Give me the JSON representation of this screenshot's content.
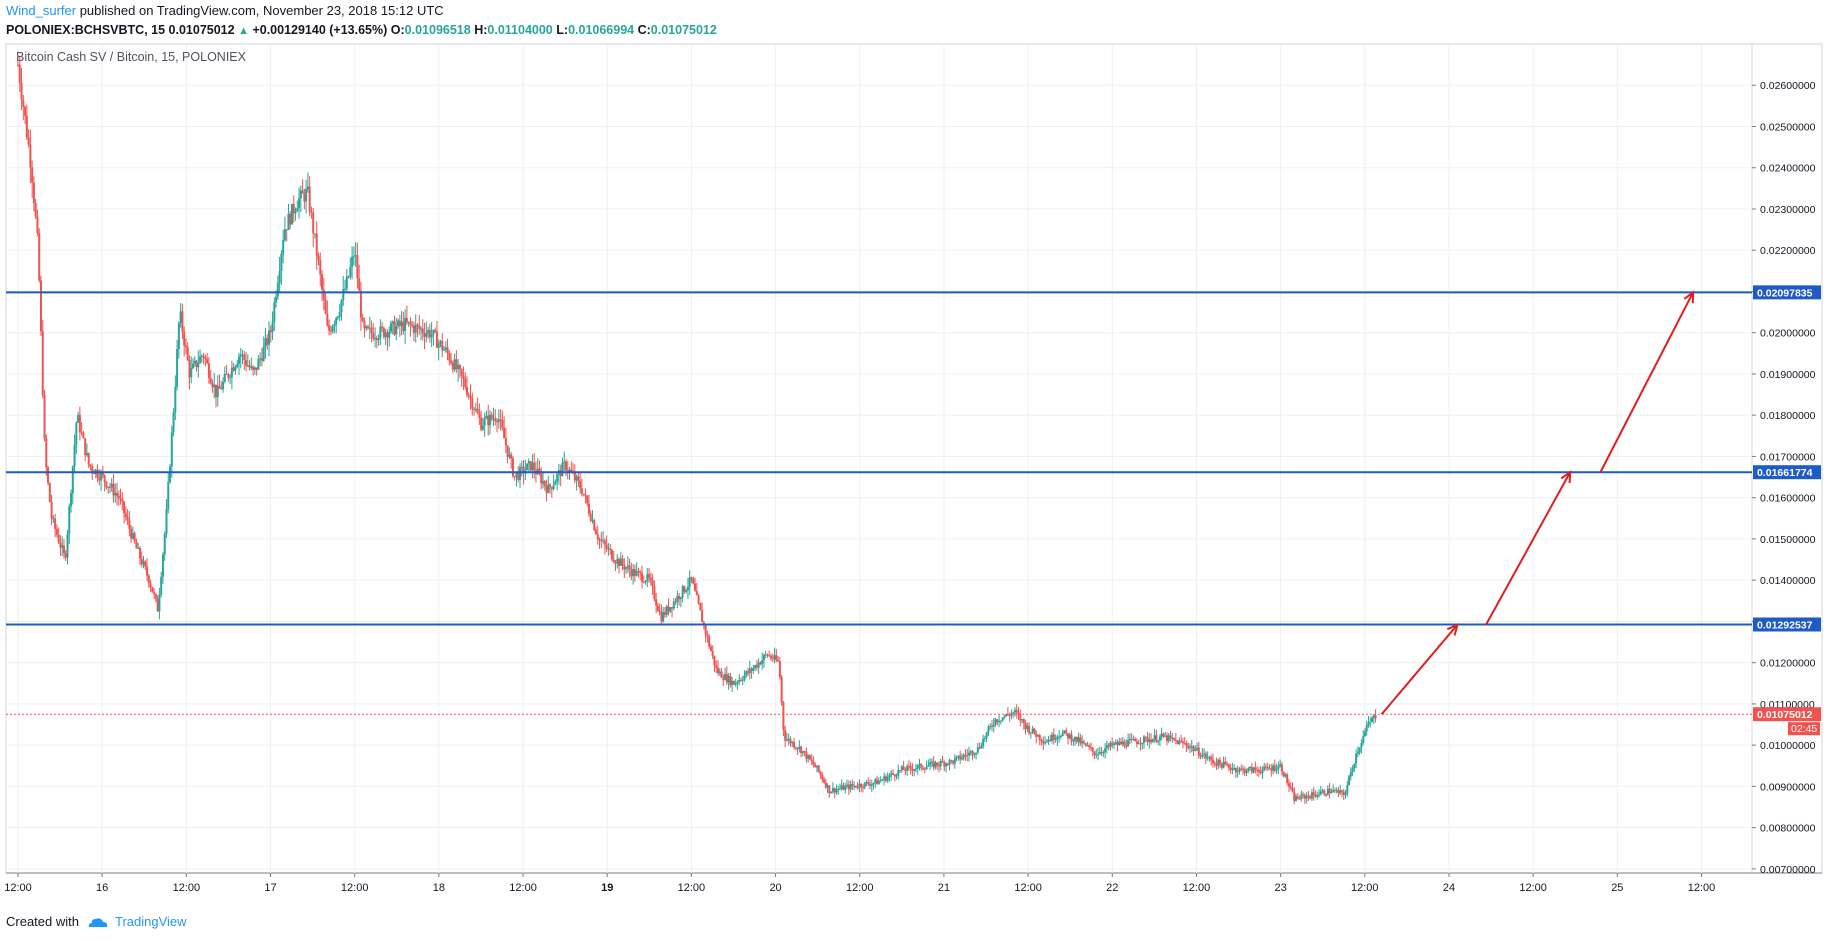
{
  "header": {
    "author": "Wind_surfer",
    "published_text": "published on TradingView.com, November 23, 2018 15:12 UTC",
    "symbol": "POLONIEX:BCHSVBTC, 15",
    "last": "0.01075012",
    "change": "+0.00129140 (+13.65%)",
    "o_label": "O:",
    "o_value": "0.01096518",
    "h_label": "H:",
    "h_value": "0.01104000",
    "l_label": "L:",
    "l_value": "0.01066994",
    "c_label": "C:",
    "c_value": "0.01075012"
  },
  "footer": {
    "created_with": "Created with",
    "brand": "TradingView"
  },
  "chart_data": {
    "type": "candlestick",
    "title": "Bitcoin Cash SV / Bitcoin, 15, POLONIEX",
    "ylim": [
      0.0069,
      0.027
    ],
    "y_ticks": [
      "0.00700000",
      "0.00800000",
      "0.00900000",
      "0.01000000",
      "0.01100000",
      "0.01200000",
      "0.01300000",
      "0.01400000",
      "0.01500000",
      "0.01600000",
      "0.01700000",
      "0.01800000",
      "0.01900000",
      "0.02000000",
      "0.02100000",
      "0.02200000",
      "0.02300000",
      "0.02400000",
      "0.02500000",
      "0.02600000"
    ],
    "x_ticks": [
      "12:00",
      "16",
      "12:00",
      "17",
      "12:00",
      "18",
      "12:00",
      "19",
      "12:00",
      "20",
      "12:00",
      "21",
      "12:00",
      "22",
      "12:00",
      "23",
      "12:00",
      "24",
      "12:00",
      "25",
      "12:00"
    ],
    "bold_x_ticks": [
      "19"
    ],
    "horizontal_levels": [
      {
        "value": 0.02097835,
        "label": "0.02097835",
        "color": "#1e5bc6"
      },
      {
        "value": 0.01661774,
        "label": "0.01661774",
        "color": "#1e5bc6"
      },
      {
        "value": 0.01292537,
        "label": "0.01292537",
        "color": "#1e5bc6"
      }
    ],
    "last_price": {
      "value": 0.01075012,
      "label": "0.01075012",
      "countdown": "02:45",
      "color": "#ef5350"
    },
    "price_path": [
      [
        0.0,
        0.0265
      ],
      [
        0.08,
        0.024
      ],
      [
        0.12,
        0.022
      ],
      [
        0.16,
        0.017
      ],
      [
        0.2,
        0.0155
      ],
      [
        0.28,
        0.0145
      ],
      [
        0.35,
        0.018
      ],
      [
        0.42,
        0.0168
      ],
      [
        0.5,
        0.0165
      ],
      [
        0.6,
        0.016
      ],
      [
        0.7,
        0.0148
      ],
      [
        0.78,
        0.014
      ],
      [
        0.83,
        0.0133
      ],
      [
        0.88,
        0.0155
      ],
      [
        0.93,
        0.0185
      ],
      [
        0.96,
        0.0205
      ],
      [
        1.02,
        0.019
      ],
      [
        1.1,
        0.0195
      ],
      [
        1.18,
        0.0185
      ],
      [
        1.25,
        0.019
      ],
      [
        1.32,
        0.0195
      ],
      [
        1.4,
        0.019
      ],
      [
        1.5,
        0.02
      ],
      [
        1.58,
        0.0225
      ],
      [
        1.66,
        0.0232
      ],
      [
        1.72,
        0.0234
      ],
      [
        1.78,
        0.0218
      ],
      [
        1.84,
        0.02
      ],
      [
        1.9,
        0.0205
      ],
      [
        1.96,
        0.0213
      ],
      [
        2.0,
        0.022
      ],
      [
        2.05,
        0.02
      ],
      [
        2.15,
        0.02
      ],
      [
        2.3,
        0.0202
      ],
      [
        2.45,
        0.02
      ],
      [
        2.55,
        0.0195
      ],
      [
        2.65,
        0.0188
      ],
      [
        2.75,
        0.0178
      ],
      [
        2.85,
        0.018
      ],
      [
        2.95,
        0.0165
      ],
      [
        3.05,
        0.0168
      ],
      [
        3.15,
        0.0162
      ],
      [
        3.25,
        0.0168
      ],
      [
        3.35,
        0.0162
      ],
      [
        3.45,
        0.015
      ],
      [
        3.55,
        0.0145
      ],
      [
        3.65,
        0.0142
      ],
      [
        3.75,
        0.014
      ],
      [
        3.82,
        0.0131
      ],
      [
        3.9,
        0.0135
      ],
      [
        4.0,
        0.014
      ],
      [
        4.08,
        0.0128
      ],
      [
        4.15,
        0.0118
      ],
      [
        4.25,
        0.0115
      ],
      [
        4.35,
        0.0118
      ],
      [
        4.45,
        0.0122
      ],
      [
        4.52,
        0.012
      ],
      [
        4.55,
        0.0102
      ],
      [
        4.65,
        0.0099
      ],
      [
        4.75,
        0.0094
      ],
      [
        4.82,
        0.0089
      ],
      [
        4.95,
        0.009
      ],
      [
        5.1,
        0.0091
      ],
      [
        5.25,
        0.0094
      ],
      [
        5.4,
        0.0095
      ],
      [
        5.55,
        0.0096
      ],
      [
        5.7,
        0.0099
      ],
      [
        5.8,
        0.0106
      ],
      [
        5.92,
        0.0108
      ],
      [
        6.0,
        0.0104
      ],
      [
        6.1,
        0.0101
      ],
      [
        6.2,
        0.0103
      ],
      [
        6.3,
        0.0101
      ],
      [
        6.4,
        0.0098
      ],
      [
        6.5,
        0.01
      ],
      [
        6.65,
        0.0101
      ],
      [
        6.8,
        0.0102
      ],
      [
        6.95,
        0.01
      ],
      [
        7.1,
        0.0096
      ],
      [
        7.25,
        0.0094
      ],
      [
        7.4,
        0.0094
      ],
      [
        7.5,
        0.0095
      ],
      [
        7.58,
        0.0087
      ],
      [
        7.7,
        0.0088
      ],
      [
        7.8,
        0.0089
      ],
      [
        7.88,
        0.0088
      ],
      [
        7.95,
        0.0098
      ],
      [
        8.02,
        0.0105
      ],
      [
        8.07,
        0.01075
      ]
    ],
    "arrows": [
      {
        "from": [
          8.1,
          0.01075
        ],
        "to": [
          8.55,
          0.01292
        ]
      },
      {
        "from": [
          8.72,
          0.01292
        ],
        "to": [
          9.22,
          0.01662
        ]
      },
      {
        "from": [
          9.4,
          0.01662
        ],
        "to": [
          9.95,
          0.02098
        ]
      }
    ],
    "x_domain": [
      0,
      10.3
    ]
  }
}
